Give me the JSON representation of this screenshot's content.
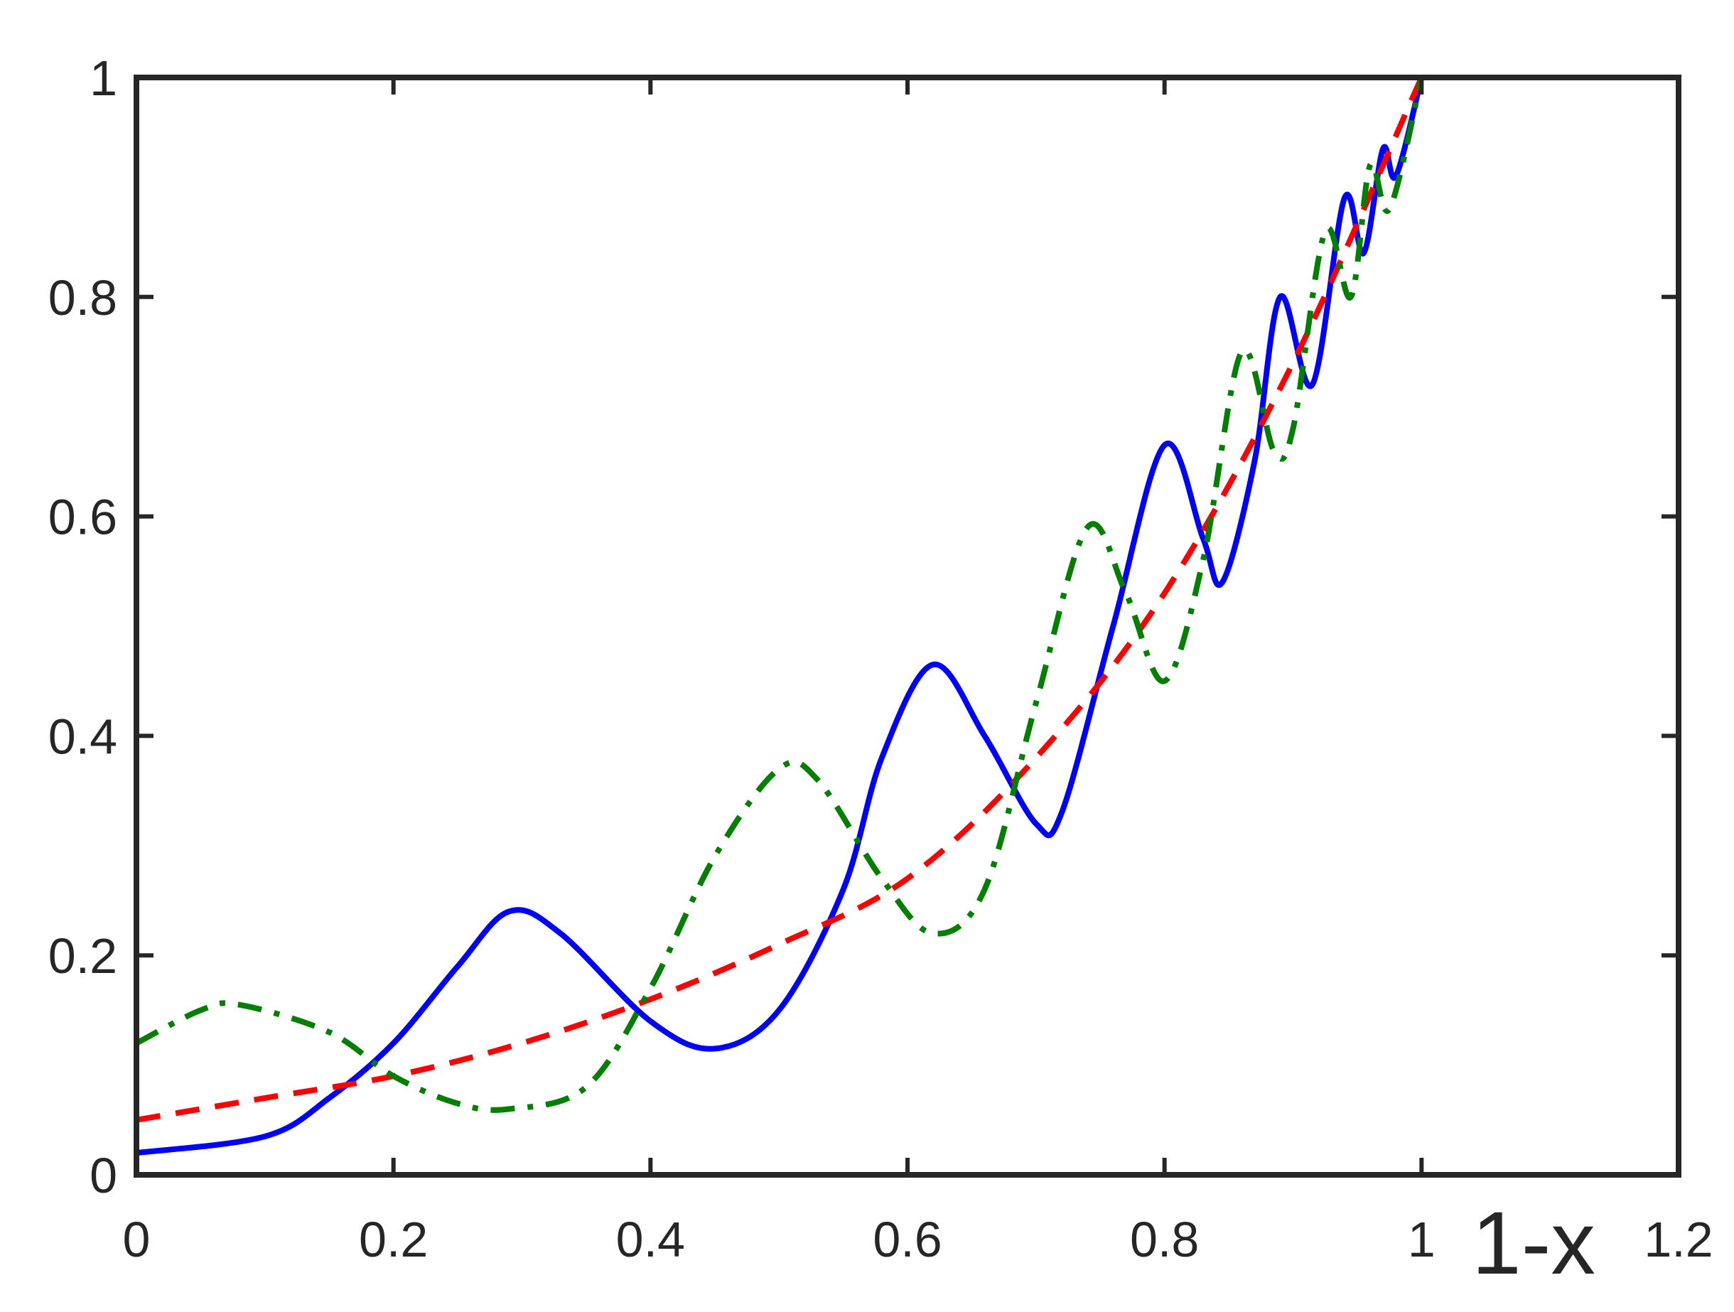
{
  "chart_data": {
    "type": "line",
    "xlabel": "1-x",
    "xlim": [
      0,
      1.2
    ],
    "xticks": [
      0,
      0.2,
      0.4,
      0.6,
      0.8,
      1,
      1.2
    ],
    "ylim": [
      0,
      1
    ],
    "yticks": [
      0,
      0.2,
      0.4,
      0.6,
      0.8,
      1
    ],
    "grid": false,
    "series": [
      {
        "color": "#0000ff",
        "style": "solid",
        "x": [
          0,
          0.1,
          0.15,
          0.2,
          0.25,
          0.29,
          0.33,
          0.4,
          0.45,
          0.5,
          0.55,
          0.58,
          0.62,
          0.66,
          0.7,
          0.72,
          0.76,
          0.8,
          0.83,
          0.845,
          0.87,
          0.89,
          0.915,
          0.94,
          0.955,
          0.97,
          0.98,
          1.0
        ],
        "values": [
          0.02,
          0.035,
          0.07,
          0.12,
          0.19,
          0.24,
          0.22,
          0.14,
          0.115,
          0.15,
          0.26,
          0.38,
          0.465,
          0.4,
          0.32,
          0.33,
          0.5,
          0.665,
          0.58,
          0.54,
          0.65,
          0.8,
          0.72,
          0.89,
          0.84,
          0.935,
          0.91,
          1.0
        ]
      },
      {
        "color": "#ff0000",
        "style": "dashed",
        "x": [
          0,
          0.1,
          0.2,
          0.3,
          0.4,
          0.5,
          0.6,
          0.7,
          0.8,
          0.9,
          1.0
        ],
        "values": [
          0.05,
          0.07,
          0.09,
          0.12,
          0.16,
          0.21,
          0.27,
          0.38,
          0.53,
          0.74,
          1.0
        ]
      },
      {
        "color": "#007f00",
        "style": "dashdot",
        "x": [
          0,
          0.05,
          0.08,
          0.15,
          0.2,
          0.25,
          0.29,
          0.35,
          0.4,
          0.45,
          0.5,
          0.53,
          0.58,
          0.62,
          0.66,
          0.7,
          0.74,
          0.77,
          0.8,
          0.83,
          0.86,
          0.885,
          0.9,
          0.925,
          0.945,
          0.96,
          0.975,
          1.0
        ],
        "values": [
          0.12,
          0.15,
          0.155,
          0.13,
          0.09,
          0.065,
          0.06,
          0.08,
          0.17,
          0.29,
          0.37,
          0.36,
          0.27,
          0.22,
          0.26,
          0.43,
          0.59,
          0.53,
          0.45,
          0.56,
          0.75,
          0.66,
          0.68,
          0.86,
          0.8,
          0.92,
          0.88,
          1.0
        ]
      }
    ]
  }
}
